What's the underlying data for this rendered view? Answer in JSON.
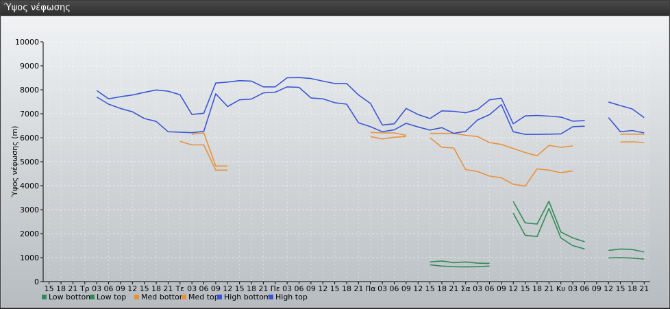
{
  "window": {
    "title": "Ύψος νέφωσης"
  },
  "chart_data": {
    "type": "line",
    "title": "",
    "xlabel": "",
    "ylabel": "Ύψος νέφωσης (m)",
    "ylim": [
      0,
      10000
    ],
    "yticks": [
      0,
      1000,
      2000,
      3000,
      4000,
      5000,
      6000,
      7000,
      8000,
      9000,
      10000
    ],
    "categories": [
      "15",
      "18",
      "21",
      "Τρ",
      "03",
      "06",
      "09",
      "12",
      "15",
      "18",
      "21",
      "Τε",
      "03",
      "06",
      "09",
      "12",
      "15",
      "18",
      "21",
      "Πε",
      "03",
      "06",
      "09",
      "12",
      "15",
      "18",
      "21",
      "Πα",
      "03",
      "06",
      "09",
      "12",
      "15",
      "18",
      "21",
      "Σα",
      "03",
      "06",
      "09",
      "12",
      "15",
      "18",
      "21",
      "Κυ",
      "03",
      "06",
      "09",
      "12",
      "15",
      "18",
      "21"
    ],
    "grid": true,
    "legend_position": "bottom-left",
    "series": [
      {
        "name": "Low bottom",
        "color": "#2e8b57",
        "values": [
          null,
          null,
          null,
          null,
          null,
          null,
          null,
          null,
          null,
          null,
          null,
          null,
          null,
          null,
          null,
          null,
          null,
          null,
          null,
          null,
          null,
          null,
          null,
          null,
          null,
          null,
          null,
          null,
          null,
          null,
          null,
          null,
          700,
          650,
          620,
          610,
          620,
          650,
          null,
          2850,
          1930,
          1880,
          3050,
          1820,
          1500,
          1360,
          null,
          990,
          1000,
          980,
          940
        ]
      },
      {
        "name": "Low top",
        "color": "#2e8b57",
        "values": [
          null,
          null,
          null,
          null,
          null,
          null,
          null,
          null,
          null,
          null,
          null,
          null,
          null,
          null,
          null,
          null,
          null,
          null,
          null,
          null,
          null,
          null,
          null,
          null,
          null,
          null,
          null,
          null,
          null,
          null,
          null,
          null,
          820,
          860,
          790,
          820,
          770,
          760,
          null,
          3340,
          2450,
          2400,
          3350,
          2070,
          1820,
          1660,
          null,
          1300,
          1360,
          1340,
          1230
        ]
      },
      {
        "name": "Med bottom",
        "color": "#e8913a",
        "values": [
          null,
          null,
          null,
          null,
          null,
          null,
          null,
          null,
          null,
          null,
          null,
          5850,
          5700,
          5700,
          4650,
          4650,
          null,
          null,
          null,
          null,
          null,
          null,
          null,
          null,
          null,
          null,
          null,
          6050,
          5950,
          6020,
          6050,
          null,
          6000,
          5600,
          5570,
          4670,
          4590,
          4400,
          4330,
          4060,
          3980,
          4700,
          4650,
          4540,
          4620,
          null,
          null,
          null,
          5820,
          5830,
          5800
        ]
      },
      {
        "name": "Med top",
        "color": "#e8913a",
        "values": [
          null,
          null,
          null,
          null,
          null,
          null,
          null,
          null,
          null,
          null,
          null,
          null,
          6150,
          6200,
          4820,
          4820,
          null,
          null,
          null,
          null,
          null,
          null,
          null,
          null,
          null,
          null,
          null,
          6220,
          6200,
          6200,
          6100,
          null,
          6180,
          6180,
          6180,
          6100,
          6050,
          5800,
          5720,
          5550,
          5380,
          5250,
          5680,
          5600,
          5660,
          null,
          null,
          null,
          6150,
          6150,
          6150
        ]
      },
      {
        "name": "High bottom",
        "color": "#3a56d4",
        "values": [
          null,
          null,
          null,
          null,
          7700,
          7400,
          7220,
          7080,
          6800,
          6680,
          6250,
          6230,
          6210,
          6270,
          7830,
          7300,
          7580,
          7610,
          7870,
          7900,
          8120,
          8100,
          7660,
          7620,
          7460,
          7400,
          6620,
          6460,
          6250,
          6330,
          6600,
          6450,
          6320,
          6420,
          6180,
          6270,
          6740,
          6960,
          7380,
          6250,
          6140,
          6140,
          6150,
          6160,
          6460,
          6480,
          null,
          6840,
          6250,
          6300,
          6200
        ]
      },
      {
        "name": "High top",
        "color": "#3a56d4",
        "values": [
          null,
          null,
          null,
          null,
          7970,
          7620,
          7710,
          7780,
          7890,
          7990,
          7940,
          7790,
          6970,
          7020,
          8280,
          8320,
          8380,
          8360,
          8120,
          8120,
          8500,
          8510,
          8470,
          8360,
          8260,
          8260,
          7780,
          7430,
          6530,
          6580,
          7220,
          6970,
          6800,
          7120,
          7100,
          7040,
          7180,
          7580,
          7650,
          6580,
          6910,
          6930,
          6900,
          6860,
          6690,
          6710,
          null,
          7490,
          7340,
          7200,
          6840
        ]
      }
    ]
  }
}
